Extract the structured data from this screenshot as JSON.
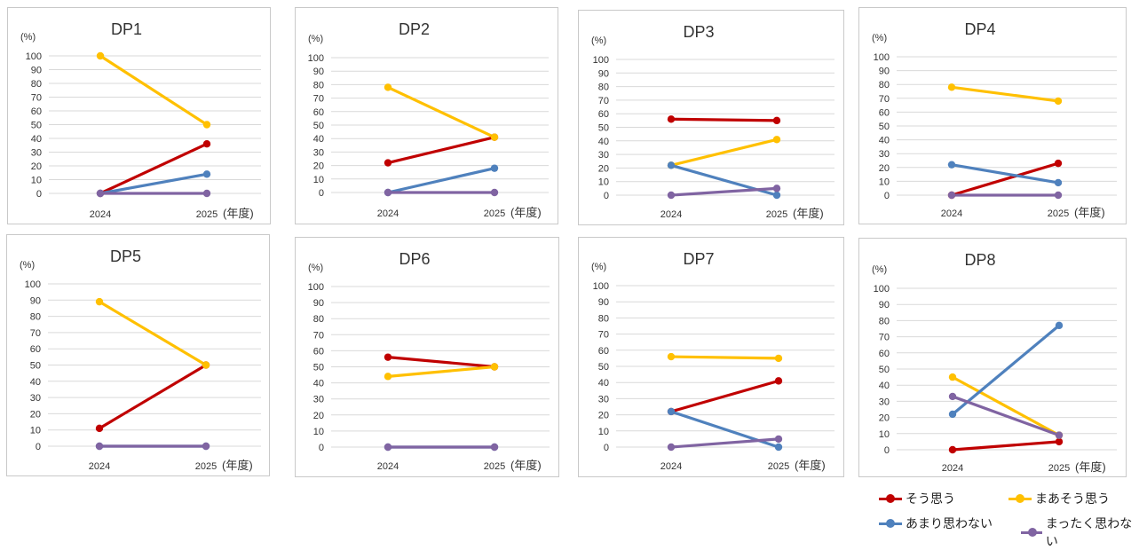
{
  "colors": {
    "sou_omou": "#c00000",
    "maa_sou_omou": "#ffc000",
    "amari_omowanai": "#4f81bd",
    "mattaku_omowanai": "#8064a2"
  },
  "chart_data": [
    {
      "type": "line",
      "title": "DP1",
      "y_unit": "(%)",
      "x_unit": "(年度)",
      "categories": [
        "2024",
        "2025"
      ],
      "yticks": [
        "0",
        "10",
        "20",
        "30",
        "40",
        "50",
        "60",
        "70",
        "80",
        "90",
        "100"
      ],
      "ylim": [
        0,
        100
      ],
      "series": [
        {
          "name": "そう思う",
          "values": [
            0,
            36
          ]
        },
        {
          "name": "まあそう思う",
          "values": [
            100,
            50
          ]
        },
        {
          "name": "あまり思わない",
          "values": [
            0,
            14
          ]
        },
        {
          "name": "まったく思わない",
          "values": [
            0,
            0
          ]
        }
      ]
    },
    {
      "type": "line",
      "title": "DP2",
      "y_unit": "(%)",
      "x_unit": "(年度)",
      "categories": [
        "2024",
        "2025"
      ],
      "yticks": [
        "0",
        "10",
        "20",
        "30",
        "40",
        "50",
        "60",
        "70",
        "80",
        "90",
        "100"
      ],
      "ylim": [
        0,
        100
      ],
      "series": [
        {
          "name": "そう思う",
          "values": [
            22,
            41
          ]
        },
        {
          "name": "まあそう思う",
          "values": [
            78,
            41
          ]
        },
        {
          "name": "あまり思わない",
          "values": [
            0,
            18
          ]
        },
        {
          "name": "まったく思わない",
          "values": [
            0,
            0
          ]
        }
      ]
    },
    {
      "type": "line",
      "title": "DP3",
      "y_unit": "(%)",
      "x_unit": "(年度)",
      "categories": [
        "2024",
        "2025"
      ],
      "yticks": [
        "0",
        "10",
        "20",
        "30",
        "40",
        "50",
        "60",
        "70",
        "80",
        "90",
        "100"
      ],
      "ylim": [
        0,
        100
      ],
      "series": [
        {
          "name": "そう思う",
          "values": [
            56,
            55
          ]
        },
        {
          "name": "まあそう思う",
          "values": [
            22,
            41
          ]
        },
        {
          "name": "あまり思わない",
          "values": [
            22,
            0
          ]
        },
        {
          "name": "まったく思わない",
          "values": [
            0,
            5
          ]
        }
      ]
    },
    {
      "type": "line",
      "title": "DP4",
      "y_unit": "(%)",
      "x_unit": "(年度)",
      "categories": [
        "2024",
        "2025"
      ],
      "yticks": [
        "0",
        "10",
        "20",
        "30",
        "40",
        "50",
        "60",
        "70",
        "80",
        "90",
        "100"
      ],
      "ylim": [
        0,
        100
      ],
      "series": [
        {
          "name": "そう思う",
          "values": [
            0,
            23
          ]
        },
        {
          "name": "まあそう思う",
          "values": [
            78,
            68
          ]
        },
        {
          "name": "あまり思わない",
          "values": [
            22,
            9
          ]
        },
        {
          "name": "まったく思わない",
          "values": [
            0,
            0
          ]
        }
      ]
    },
    {
      "type": "line",
      "title": "DP5",
      "y_unit": "(%)",
      "x_unit": "(年度)",
      "categories": [
        "2024",
        "2025"
      ],
      "yticks": [
        "0",
        "10",
        "20",
        "30",
        "40",
        "50",
        "60",
        "70",
        "80",
        "90",
        "100"
      ],
      "ylim": [
        0,
        100
      ],
      "series": [
        {
          "name": "そう思う",
          "values": [
            11,
            50
          ]
        },
        {
          "name": "まあそう思う",
          "values": [
            89,
            50
          ]
        },
        {
          "name": "あまり思わない",
          "values": [
            0,
            0
          ]
        },
        {
          "name": "まったく思わない",
          "values": [
            0,
            0
          ]
        }
      ]
    },
    {
      "type": "line",
      "title": "DP6",
      "y_unit": "(%)",
      "x_unit": "(年度)",
      "categories": [
        "2024",
        "2025"
      ],
      "yticks": [
        "0",
        "10",
        "20",
        "30",
        "40",
        "50",
        "60",
        "70",
        "80",
        "90",
        "100"
      ],
      "ylim": [
        0,
        100
      ],
      "series": [
        {
          "name": "そう思う",
          "values": [
            56,
            50
          ]
        },
        {
          "name": "まあそう思う",
          "values": [
            44,
            50
          ]
        },
        {
          "name": "あまり思わない",
          "values": [
            0,
            0
          ]
        },
        {
          "name": "まったく思わない",
          "values": [
            0,
            0
          ]
        }
      ]
    },
    {
      "type": "line",
      "title": "DP7",
      "y_unit": "(%)",
      "x_unit": "(年度)",
      "categories": [
        "2024",
        "2025"
      ],
      "yticks": [
        "0",
        "10",
        "20",
        "30",
        "40",
        "50",
        "60",
        "70",
        "80",
        "90",
        "100"
      ],
      "ylim": [
        0,
        100
      ],
      "series": [
        {
          "name": "そう思う",
          "values": [
            22,
            41
          ]
        },
        {
          "name": "まあそう思う",
          "values": [
            56,
            55
          ]
        },
        {
          "name": "あまり思わない",
          "values": [
            22,
            0
          ]
        },
        {
          "name": "まったく思わない",
          "values": [
            0,
            5
          ]
        }
      ]
    },
    {
      "type": "line",
      "title": "DP8",
      "y_unit": "(%)",
      "x_unit": "(年度)",
      "categories": [
        "2024",
        "2025"
      ],
      "yticks": [
        "0",
        "10",
        "20",
        "30",
        "40",
        "50",
        "60",
        "70",
        "80",
        "90",
        "100"
      ],
      "ylim": [
        0,
        100
      ],
      "series": [
        {
          "name": "そう思う",
          "values": [
            0,
            5
          ]
        },
        {
          "name": "まあそう思う",
          "values": [
            45,
            9
          ]
        },
        {
          "name": "あまり思わない",
          "values": [
            22,
            77
          ]
        },
        {
          "name": "まったく思わない",
          "values": [
            33,
            9
          ]
        }
      ]
    }
  ],
  "legend": {
    "items": [
      {
        "label": "そう思う",
        "color": "#c00000"
      },
      {
        "label": "まあそう思う",
        "color": "#ffc000"
      },
      {
        "label": "あまり思わない",
        "color": "#4f81bd"
      },
      {
        "label": "まったく思わない",
        "color": "#8064a2"
      }
    ]
  }
}
